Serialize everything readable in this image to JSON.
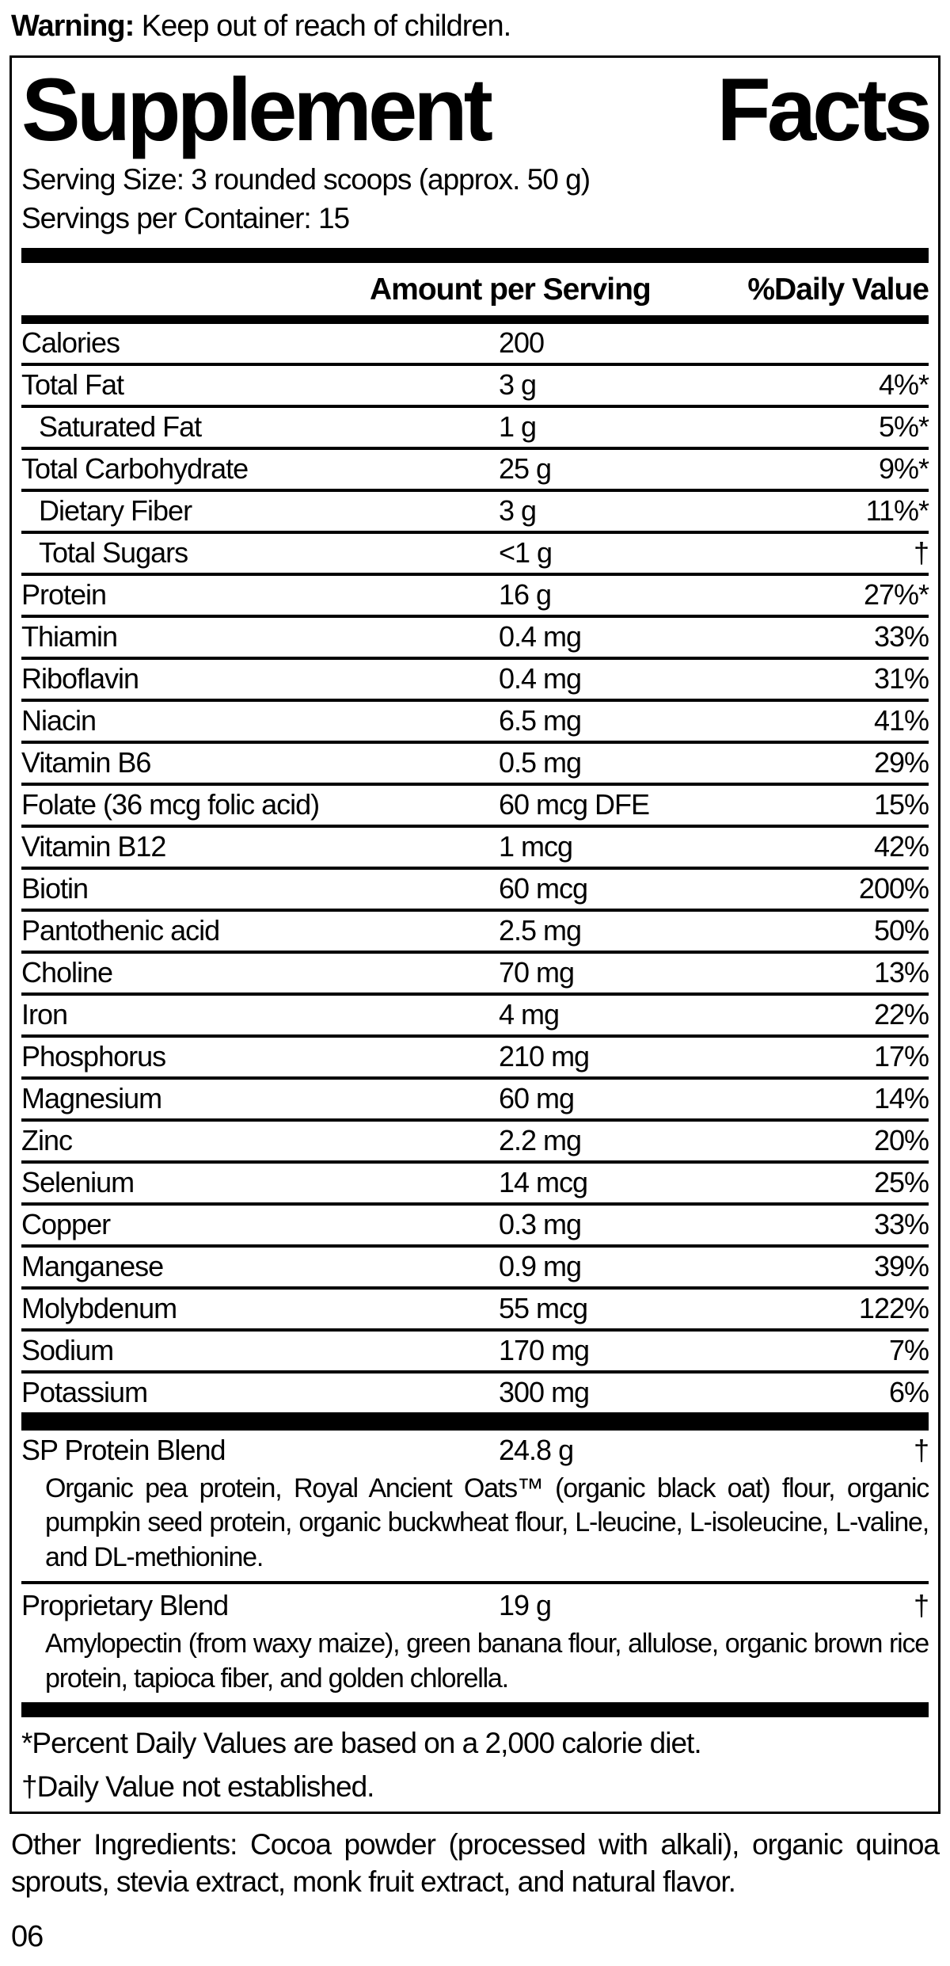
{
  "colors": {
    "ink": "#000000",
    "paper": "#ffffff"
  },
  "warning": {
    "label": "Warning:",
    "text": " Keep out of reach of children."
  },
  "panel": {
    "title": "Supplement Facts",
    "serving_size": "Serving Size: 3 rounded scoops (approx. 50 g)",
    "servings_per_container": "Servings per Container: 15",
    "header": {
      "amount": "Amount per Serving",
      "daily_value": "%Daily Value"
    },
    "rows": [
      {
        "label": "Calories",
        "amount": "200",
        "dv": "",
        "indent": false
      },
      {
        "label": "Total Fat",
        "amount": "3 g",
        "dv": "4%*",
        "indent": false
      },
      {
        "label": "Saturated Fat",
        "amount": "1 g",
        "dv": "5%*",
        "indent": true
      },
      {
        "label": "Total Carbohydrate",
        "amount": "25 g",
        "dv": "9%*",
        "indent": false
      },
      {
        "label": "Dietary Fiber",
        "amount": "3 g",
        "dv": "11%*",
        "indent": true
      },
      {
        "label": "Total Sugars",
        "amount": "<1 g",
        "dv": "†",
        "indent": true
      },
      {
        "label": "Protein",
        "amount": "16 g",
        "dv": "27%*",
        "indent": false
      },
      {
        "label": "Thiamin",
        "amount": "0.4 mg",
        "dv": "33%",
        "indent": false
      },
      {
        "label": "Riboflavin",
        "amount": "0.4 mg",
        "dv": "31%",
        "indent": false
      },
      {
        "label": "Niacin",
        "amount": "6.5 mg",
        "dv": "41%",
        "indent": false
      },
      {
        "label": "Vitamin B6",
        "amount": "0.5 mg",
        "dv": "29%",
        "indent": false
      },
      {
        "label": "Folate (36 mcg folic acid)",
        "amount": "60 mcg DFE",
        "dv": "15%",
        "indent": false
      },
      {
        "label": "Vitamin B12",
        "amount": "1 mcg",
        "dv": "42%",
        "indent": false
      },
      {
        "label": "Biotin",
        "amount": "60 mcg",
        "dv": "200%",
        "indent": false
      },
      {
        "label": "Pantothenic acid",
        "amount": "2.5 mg",
        "dv": "50%",
        "indent": false
      },
      {
        "label": "Choline",
        "amount": "70 mg",
        "dv": "13%",
        "indent": false
      },
      {
        "label": "Iron",
        "amount": "4 mg",
        "dv": "22%",
        "indent": false
      },
      {
        "label": "Phosphorus",
        "amount": "210 mg",
        "dv": "17%",
        "indent": false
      },
      {
        "label": "Magnesium",
        "amount": "60 mg",
        "dv": "14%",
        "indent": false
      },
      {
        "label": "Zinc",
        "amount": "2.2 mg",
        "dv": "20%",
        "indent": false
      },
      {
        "label": "Selenium",
        "amount": "14 mcg",
        "dv": "25%",
        "indent": false
      },
      {
        "label": "Copper",
        "amount": "0.3 mg",
        "dv": "33%",
        "indent": false
      },
      {
        "label": "Manganese",
        "amount": "0.9 mg",
        "dv": "39%",
        "indent": false
      },
      {
        "label": "Molybdenum",
        "amount": "55 mcg",
        "dv": "122%",
        "indent": false
      },
      {
        "label": "Sodium",
        "amount": "170 mg",
        "dv": "7%",
        "indent": false
      },
      {
        "label": "Potassium",
        "amount": "300 mg",
        "dv": "6%",
        "indent": false
      }
    ],
    "blends": [
      {
        "name": "SP Protein Blend",
        "amount": "24.8 g",
        "dv": "†",
        "description": "Organic pea protein, Royal Ancient Oats™ (organic black oat) flour, organic pumpkin seed protein, organic buckwheat flour, L-leucine, L-isoleucine, L-valine, and DL-methionine."
      },
      {
        "name": "Proprietary Blend",
        "amount": "19 g",
        "dv": "†",
        "description": "Amylopectin (from waxy maize), green banana flour, allulose, organic brown rice protein, tapioca fiber, and golden chlorella."
      }
    ],
    "footnotes": [
      "*Percent Daily Values are based on a 2,000 calorie diet.",
      "†Daily Value not established."
    ]
  },
  "other_ingredients": "Other Ingredients: Cocoa powder (processed with alkali), organic quinoa sprouts, stevia extract, monk fruit extract, and natural flavor.",
  "page_number": "06"
}
